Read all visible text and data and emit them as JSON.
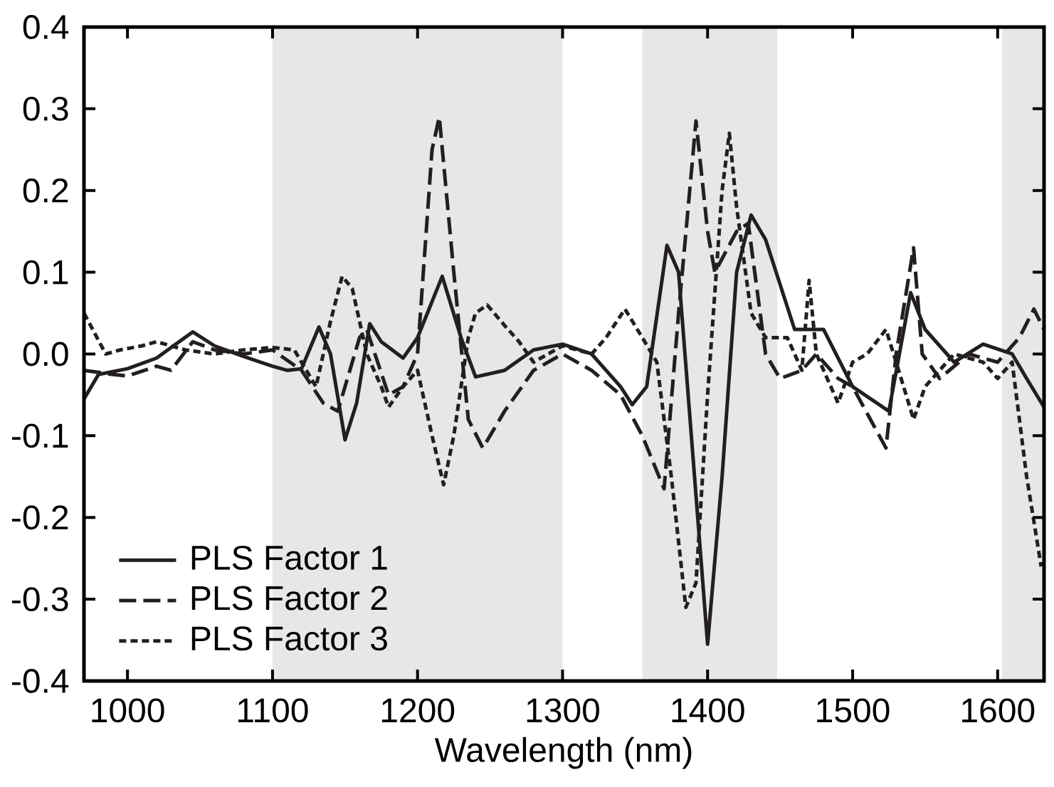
{
  "chart_data": {
    "type": "line",
    "xlabel": "Wavelength (nm)",
    "xlim": [
      970,
      1632
    ],
    "ylim": [
      -0.4,
      0.4
    ],
    "xticks": [
      1000,
      1100,
      1200,
      1300,
      1400,
      1500,
      1600
    ],
    "yticks": [
      -0.4,
      -0.3,
      -0.2,
      -0.1,
      {
        "value": 0,
        "label": "0.0"
      },
      0.1,
      0.2,
      0.3,
      0.4
    ],
    "legend": "bottom left",
    "grid": false,
    "bands": [
      {
        "axis": "x",
        "from": 1100,
        "to": 1300,
        "color": "#e6e7e8"
      },
      {
        "axis": "x",
        "from": 1355,
        "to": 1448,
        "color": "#e6e7e8"
      },
      {
        "axis": "x",
        "from": 1603,
        "to": 1632,
        "color": "#e6e7e8"
      }
    ],
    "series": [
      {
        "name": "PLS Factor 1",
        "color": "#231f20",
        "line_style": "solid",
        "x": [
          970,
          980,
          1000,
          1020,
          1045,
          1060,
          1080,
          1100,
          1110,
          1120,
          1132,
          1140,
          1150,
          1158,
          1167,
          1175,
          1190,
          1200,
          1217,
          1230,
          1240,
          1260,
          1280,
          1300,
          1320,
          1340,
          1348,
          1358,
          1372,
          1380,
          1400,
          1410,
          1420,
          1430,
          1440,
          1460,
          1480,
          1500,
          1525,
          1540,
          1550,
          1570,
          1590,
          1610,
          1620,
          1632
        ],
        "values": [
          -0.055,
          -0.025,
          -0.018,
          -0.005,
          0.027,
          0.01,
          -0.003,
          -0.015,
          -0.02,
          -0.018,
          0.033,
          0.0,
          -0.105,
          -0.06,
          0.037,
          0.015,
          -0.005,
          0.02,
          0.095,
          0.02,
          -0.028,
          -0.02,
          0.005,
          0.012,
          0.0,
          -0.04,
          -0.062,
          -0.04,
          0.133,
          0.1,
          -0.355,
          -0.15,
          0.1,
          0.17,
          0.14,
          0.03,
          0.03,
          -0.04,
          -0.07,
          0.075,
          0.03,
          -0.01,
          0.012,
          0.0,
          -0.03,
          -0.065
        ]
      },
      {
        "name": "PLS Factor 2",
        "color": "#231f20",
        "line_style": "dashed",
        "x": [
          970,
          990,
          1000,
          1020,
          1030,
          1045,
          1060,
          1080,
          1100,
          1120,
          1135,
          1145,
          1160,
          1165,
          1180,
          1190,
          1200,
          1210,
          1215,
          1225,
          1235,
          1245,
          1260,
          1280,
          1300,
          1320,
          1340,
          1355,
          1370,
          1380,
          1392,
          1400,
          1405,
          1420,
          1428,
          1440,
          1450,
          1465,
          1475,
          1490,
          1500,
          1523,
          1530,
          1542,
          1548,
          1560,
          1580,
          1600,
          1615,
          1625,
          1632
        ],
        "values": [
          -0.02,
          -0.025,
          -0.027,
          -0.015,
          -0.02,
          0.015,
          0.005,
          0.0,
          0.005,
          -0.02,
          -0.06,
          -0.07,
          0.02,
          0.03,
          -0.05,
          -0.04,
          0.0,
          0.25,
          0.29,
          0.1,
          -0.08,
          -0.115,
          -0.07,
          -0.02,
          0.0,
          -0.02,
          -0.05,
          -0.1,
          -0.165,
          0.05,
          0.285,
          0.15,
          0.1,
          0.15,
          0.16,
          0.0,
          -0.03,
          -0.02,
          0.0,
          -0.03,
          -0.04,
          -0.115,
          0.0,
          0.13,
          0.0,
          -0.03,
          0.0,
          -0.01,
          0.02,
          0.055,
          0.03
        ]
      },
      {
        "name": "PLS Factor 3",
        "color": "#231f20",
        "line_style": "dotted",
        "x": [
          970,
          985,
          995,
          1010,
          1020,
          1040,
          1060,
          1080,
          1100,
          1115,
          1130,
          1140,
          1148,
          1155,
          1165,
          1175,
          1180,
          1190,
          1200,
          1210,
          1218,
          1225,
          1235,
          1240,
          1248,
          1260,
          1270,
          1280,
          1300,
          1320,
          1330,
          1343,
          1355,
          1365,
          1375,
          1385,
          1392,
          1400,
          1410,
          1415,
          1420,
          1430,
          1440,
          1455,
          1465,
          1470,
          1475,
          1490,
          1500,
          1510,
          1523,
          1530,
          1542,
          1550,
          1570,
          1590,
          1600,
          1610,
          1620,
          1630
        ],
        "values": [
          0.05,
          0.0,
          0.005,
          0.01,
          0.015,
          0.005,
          0.0,
          0.005,
          0.008,
          0.005,
          -0.04,
          0.04,
          0.095,
          0.08,
          0.0,
          -0.04,
          -0.065,
          -0.04,
          -0.02,
          -0.1,
          -0.16,
          -0.1,
          0.02,
          0.05,
          0.06,
          0.035,
          0.015,
          -0.01,
          0.01,
          0.0,
          0.02,
          0.055,
          0.02,
          -0.01,
          -0.15,
          -0.31,
          -0.28,
          -0.05,
          0.2,
          0.27,
          0.18,
          0.05,
          0.02,
          0.02,
          -0.02,
          0.09,
          0.0,
          -0.06,
          -0.01,
          0.0,
          0.03,
          -0.01,
          -0.08,
          -0.04,
          0.0,
          -0.01,
          -0.03,
          -0.01,
          -0.15,
          -0.26
        ]
      }
    ]
  }
}
